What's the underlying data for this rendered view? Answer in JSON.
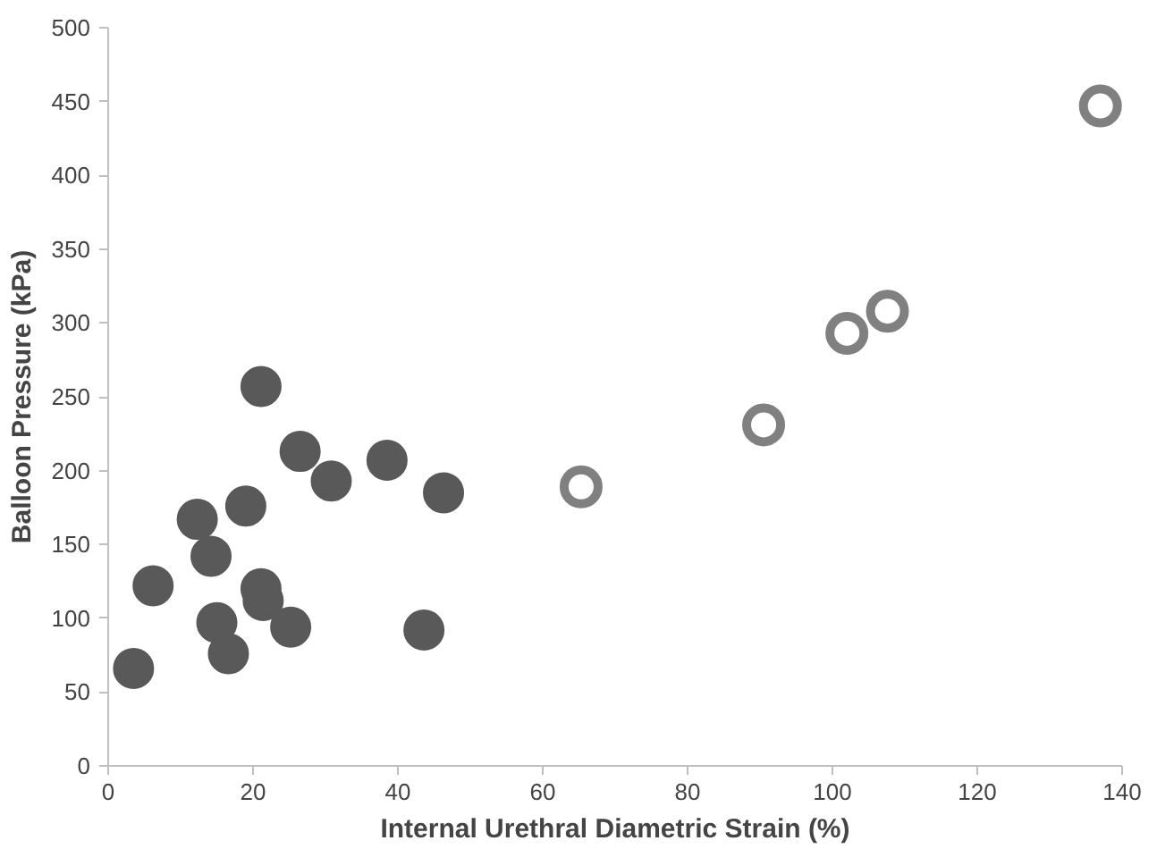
{
  "chart_data": {
    "type": "scatter",
    "xlabel": "Internal Urethral Diametric Strain (%)",
    "ylabel": "Balloon Pressure (kPa)",
    "xlim": [
      0,
      140
    ],
    "ylim": [
      0,
      500
    ],
    "xticks": [
      0,
      20,
      40,
      60,
      80,
      100,
      120,
      140
    ],
    "yticks": [
      0,
      50,
      100,
      150,
      200,
      250,
      300,
      350,
      400,
      450,
      500
    ],
    "grid": false,
    "marker": "circle",
    "series": [
      {
        "color": "#595959",
        "x": [
          3.5,
          6.2,
          12.3,
          14.2,
          15,
          16.6,
          19,
          21.1,
          21.1,
          21.4,
          25.2,
          26.5,
          30.8,
          38.5,
          43.6,
          46.3
        ],
        "values": [
          66,
          122,
          167,
          142,
          97,
          76,
          176,
          257,
          120,
          112,
          94,
          213,
          193,
          207,
          92,
          185
        ]
      },
      {
        "color": "#808080",
        "marker": "circle_open",
        "x": [
          65.3,
          90.5,
          102,
          107.6,
          137
        ],
        "values": [
          189,
          231,
          293,
          308,
          447
        ]
      }
    ]
  }
}
